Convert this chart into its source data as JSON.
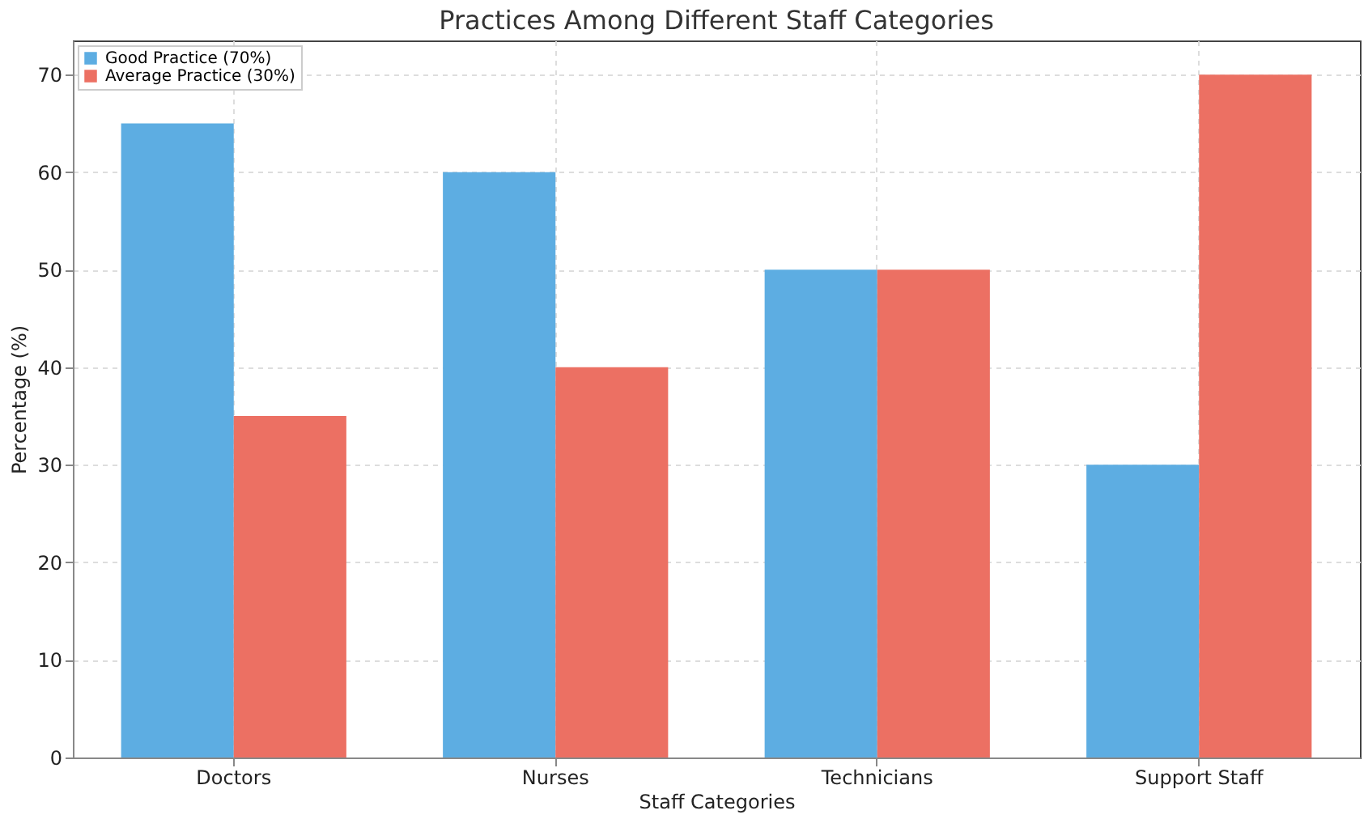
{
  "chart_data": {
    "type": "bar",
    "title": "Practices Among Different Staff Categories",
    "xlabel": "Staff Categories",
    "ylabel": "Percentage (%)",
    "categories": [
      "Doctors",
      "Nurses",
      "Technicians",
      "Support Staff"
    ],
    "series": [
      {
        "name": "Good Practice (70%)",
        "color": "#5dade2",
        "values": [
          65,
          60,
          50,
          30
        ]
      },
      {
        "name": "Average Practice (30%)",
        "color": "#ec7063",
        "values": [
          35,
          40,
          50,
          70
        ]
      }
    ],
    "ylim": [
      0,
      73.5
    ],
    "yticks": [
      0,
      10,
      20,
      30,
      40,
      50,
      60,
      70
    ],
    "grid": true,
    "legend": "top left"
  }
}
